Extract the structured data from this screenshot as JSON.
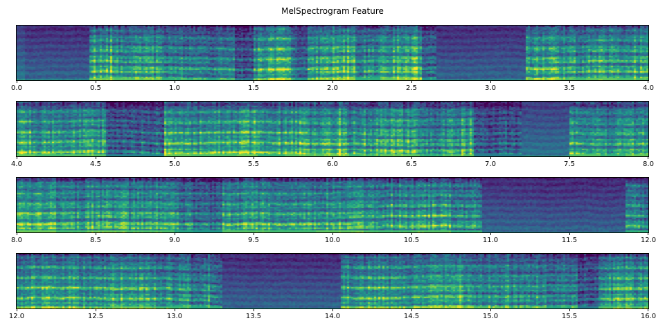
{
  "chart_data": {
    "type": "heatmap",
    "subtype": "mel-spectrogram",
    "title": "MelSpectrogram Feature",
    "xlabel": "",
    "ylabel": "",
    "grid": false,
    "legend": "none",
    "y_axis_ticks_visible": false,
    "colormap": "viridis",
    "colormap_stops": [
      "#440154",
      "#482878",
      "#3e4989",
      "#31688e",
      "#26828e",
      "#1f9e89",
      "#35b779",
      "#6dcd59",
      "#b4de2c",
      "#fde725"
    ],
    "n_rows": 4,
    "rows": [
      {
        "x_range": [
          0.0,
          4.0
        ],
        "ticks": [
          "0.0",
          "0.5",
          "1.0",
          "1.5",
          "2.0",
          "2.5",
          "3.0",
          "3.5",
          "4.0"
        ],
        "segments": [
          {
            "start": 0.0,
            "end": 0.05,
            "level": 0.3
          },
          {
            "start": 0.05,
            "end": 0.46,
            "level": 0.13
          },
          {
            "start": 0.46,
            "end": 0.62,
            "level": 0.78
          },
          {
            "start": 0.62,
            "end": 0.92,
            "level": 0.72
          },
          {
            "start": 0.92,
            "end": 1.12,
            "level": 0.6
          },
          {
            "start": 1.12,
            "end": 1.38,
            "level": 0.55
          },
          {
            "start": 1.38,
            "end": 1.5,
            "level": 0.32
          },
          {
            "start": 1.5,
            "end": 1.6,
            "level": 0.72
          },
          {
            "start": 1.6,
            "end": 1.74,
            "level": 0.8
          },
          {
            "start": 1.74,
            "end": 1.84,
            "level": 0.45
          },
          {
            "start": 1.84,
            "end": 2.0,
            "level": 0.72
          },
          {
            "start": 2.0,
            "end": 2.14,
            "level": 0.85
          },
          {
            "start": 2.14,
            "end": 2.3,
            "level": 0.6
          },
          {
            "start": 2.3,
            "end": 2.42,
            "level": 0.75
          },
          {
            "start": 2.42,
            "end": 2.56,
            "level": 0.82
          },
          {
            "start": 2.56,
            "end": 2.66,
            "level": 0.45
          },
          {
            "start": 2.66,
            "end": 3.22,
            "level": 0.13
          },
          {
            "start": 3.22,
            "end": 3.45,
            "level": 0.75
          },
          {
            "start": 3.45,
            "end": 3.6,
            "level": 0.68
          },
          {
            "start": 3.6,
            "end": 3.8,
            "level": 0.75
          },
          {
            "start": 3.8,
            "end": 4.0,
            "level": 0.7
          }
        ]
      },
      {
        "x_range": [
          4.0,
          8.0
        ],
        "ticks": [
          "4.0",
          "4.5",
          "5.0",
          "5.5",
          "6.0",
          "6.5",
          "7.0",
          "7.5",
          "8.0"
        ],
        "segments": [
          {
            "start": 4.0,
            "end": 4.12,
            "level": 0.75
          },
          {
            "start": 4.12,
            "end": 4.3,
            "level": 0.68
          },
          {
            "start": 4.3,
            "end": 4.56,
            "level": 0.72
          },
          {
            "start": 4.56,
            "end": 4.94,
            "level": 0.38
          },
          {
            "start": 4.94,
            "end": 5.1,
            "level": 0.75
          },
          {
            "start": 5.1,
            "end": 5.4,
            "level": 0.7
          },
          {
            "start": 5.4,
            "end": 5.52,
            "level": 0.78
          },
          {
            "start": 5.52,
            "end": 5.7,
            "level": 0.62
          },
          {
            "start": 5.7,
            "end": 5.95,
            "level": 0.72
          },
          {
            "start": 5.95,
            "end": 6.1,
            "level": 0.78
          },
          {
            "start": 6.1,
            "end": 6.3,
            "level": 0.65
          },
          {
            "start": 6.3,
            "end": 6.55,
            "level": 0.75
          },
          {
            "start": 6.55,
            "end": 6.7,
            "level": 0.6
          },
          {
            "start": 6.7,
            "end": 6.9,
            "level": 0.7
          },
          {
            "start": 6.9,
            "end": 7.2,
            "level": 0.35
          },
          {
            "start": 7.2,
            "end": 7.5,
            "level": 0.28
          },
          {
            "start": 7.5,
            "end": 7.7,
            "level": 0.72
          },
          {
            "start": 7.7,
            "end": 7.85,
            "level": 0.62
          },
          {
            "start": 7.85,
            "end": 8.0,
            "level": 0.75
          }
        ]
      },
      {
        "x_range": [
          8.0,
          12.0
        ],
        "ticks": [
          "8.0",
          "8.5",
          "9.0",
          "9.5",
          "10.0",
          "10.5",
          "11.0",
          "11.5",
          "12.0"
        ],
        "segments": [
          {
            "start": 8.0,
            "end": 8.25,
            "level": 0.78
          },
          {
            "start": 8.25,
            "end": 8.45,
            "level": 0.68
          },
          {
            "start": 8.45,
            "end": 8.7,
            "level": 0.75
          },
          {
            "start": 8.7,
            "end": 9.0,
            "level": 0.7
          },
          {
            "start": 9.0,
            "end": 9.12,
            "level": 0.55
          },
          {
            "start": 9.12,
            "end": 9.3,
            "level": 0.48
          },
          {
            "start": 9.3,
            "end": 9.6,
            "level": 0.72
          },
          {
            "start": 9.6,
            "end": 9.9,
            "level": 0.68
          },
          {
            "start": 9.9,
            "end": 10.2,
            "level": 0.75
          },
          {
            "start": 10.2,
            "end": 10.5,
            "level": 0.68
          },
          {
            "start": 10.5,
            "end": 10.75,
            "level": 0.72
          },
          {
            "start": 10.75,
            "end": 10.95,
            "level": 0.6
          },
          {
            "start": 10.95,
            "end": 11.3,
            "level": 0.14
          },
          {
            "start": 11.3,
            "end": 11.85,
            "level": 0.1
          },
          {
            "start": 11.85,
            "end": 12.0,
            "level": 0.6
          }
        ]
      },
      {
        "x_range": [
          12.0,
          16.0
        ],
        "ticks": [
          "12.0",
          "12.5",
          "13.0",
          "13.5",
          "14.0",
          "14.5",
          "15.0",
          "15.5",
          "16.0"
        ],
        "segments": [
          {
            "start": 12.0,
            "end": 12.3,
            "level": 0.72
          },
          {
            "start": 12.3,
            "end": 12.6,
            "level": 0.68
          },
          {
            "start": 12.6,
            "end": 12.85,
            "level": 0.75
          },
          {
            "start": 12.85,
            "end": 13.1,
            "level": 0.65
          },
          {
            "start": 13.1,
            "end": 13.3,
            "level": 0.55
          },
          {
            "start": 13.3,
            "end": 14.05,
            "level": 0.12
          },
          {
            "start": 14.05,
            "end": 14.35,
            "level": 0.72
          },
          {
            "start": 14.35,
            "end": 14.6,
            "level": 0.65
          },
          {
            "start": 14.6,
            "end": 14.9,
            "level": 0.75
          },
          {
            "start": 14.9,
            "end": 15.1,
            "level": 0.68
          },
          {
            "start": 15.1,
            "end": 15.35,
            "level": 0.6
          },
          {
            "start": 15.35,
            "end": 15.55,
            "level": 0.55
          },
          {
            "start": 15.55,
            "end": 15.68,
            "level": 0.35
          },
          {
            "start": 15.68,
            "end": 16.0,
            "level": 0.7
          }
        ]
      }
    ]
  },
  "style": {
    "background": "#ffffff",
    "spine_color": "#000000",
    "tick_color": "#000000",
    "text_color": "#000000"
  }
}
